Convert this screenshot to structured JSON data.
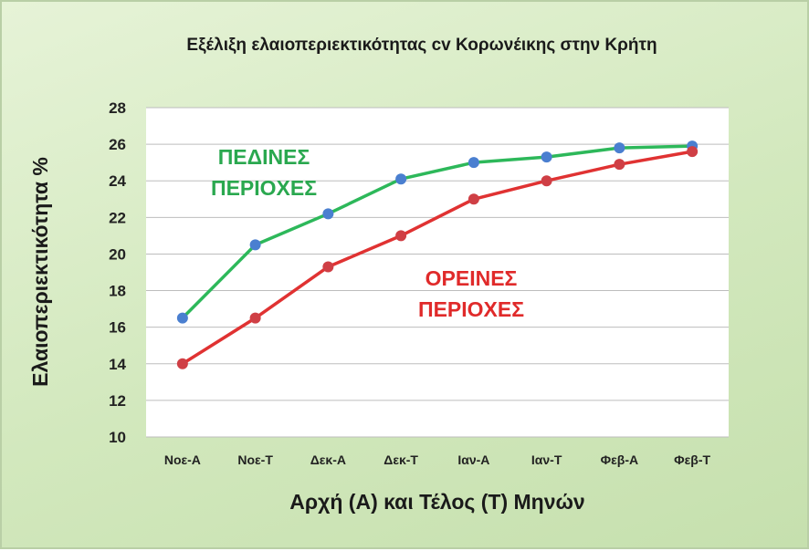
{
  "chart_data": {
    "type": "line",
    "title": "Εξέλιξη ελαιοπεριεκτικότητας  cv  Κορωνέικης στην Κρήτη",
    "xlabel": "Αρχή (Α) και Τέλος  (Τ) Μηνών",
    "ylabel": "Ελαιοπεριεκτικότητα %",
    "categories": [
      "Νοε-Α",
      "Νοε-Τ",
      "Δεκ-Α",
      "Δεκ-Τ",
      "Ιαν-Α",
      "Ιαν-Τ",
      "Φεβ-Α",
      "Φεβ-Τ"
    ],
    "ylim": [
      10,
      28
    ],
    "yticks": [
      10,
      12,
      14,
      16,
      18,
      20,
      22,
      24,
      26,
      28
    ],
    "grid": true,
    "series": [
      {
        "name_lines": [
          "ΠΕΔΙΝΕΣ",
          "ΠΕΡΙΟΧΕΣ"
        ],
        "values": [
          16.5,
          20.5,
          22.2,
          24.1,
          25.0,
          25.3,
          25.8,
          25.9
        ],
        "line_color": "#2db85a",
        "marker_color": "#4a7fd0",
        "label_color": "#2aa84f"
      },
      {
        "name_lines": [
          "ΟΡΕΙΝΕΣ",
          "ΠΕΡΙΟΧΕΣ"
        ],
        "values": [
          14.0,
          16.5,
          19.3,
          21.0,
          23.0,
          24.0,
          24.9,
          25.6
        ],
        "line_color": "#e03232",
        "marker_color": "#cf3f45",
        "label_color": "#e02a2a"
      }
    ]
  }
}
